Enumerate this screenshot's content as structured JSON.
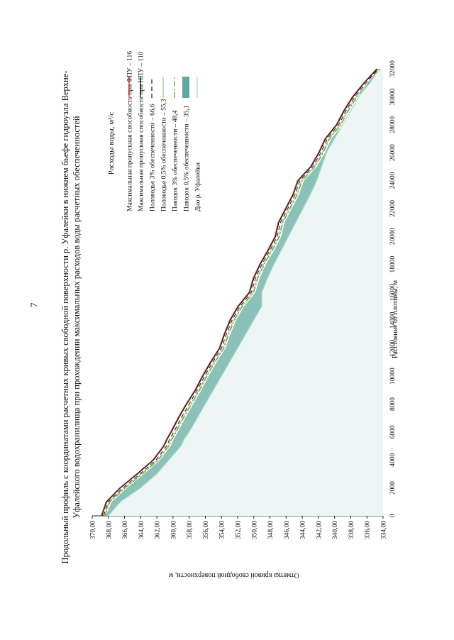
{
  "page": {
    "number": "7"
  },
  "chart_data": {
    "type": "area",
    "title_line1": "Продольный профиль с координатами расчетных кривых свободной поверхности р. Уфалейки в нижнем бьефе гидроузла Верхне-",
    "title_line2": "Уфалейского водохранилища при прохождении максимальных расходов воды расчетных обеспеченностей",
    "xlabel": "Расстояние от плотины, м",
    "ylabel": "Отметка кривой свободной поверхности, м",
    "xlim": [
      0,
      32000
    ],
    "ylim": [
      334,
      370
    ],
    "xticks": [
      "0",
      "2000",
      "4000",
      "6000",
      "8000",
      "10000",
      "12000",
      "14000",
      "16000",
      "18000",
      "20000",
      "22000",
      "24000",
      "26000",
      "28000",
      "30000",
      "32000"
    ],
    "yticks": [
      "334,00",
      "336,00",
      "338,00",
      "340,00",
      "342,00",
      "344,00",
      "346,00",
      "348,00",
      "350,00",
      "352,00",
      "354,00",
      "356,00",
      "358,00",
      "360,00",
      "362,00",
      "364,00",
      "366,00",
      "368,00",
      "370,00"
    ],
    "legend": {
      "title": "Расходы воды, м³/с",
      "position": "top-right"
    },
    "x": [
      0,
      1000,
      2000,
      3000,
      4000,
      5000,
      5500,
      6000,
      7000,
      8000,
      9000,
      10000,
      11000,
      12000,
      13000,
      14000,
      15000,
      16000,
      17000,
      18000,
      19000,
      20000,
      21000,
      22000,
      23000,
      24000,
      25000,
      26000,
      27000,
      28000,
      29000,
      30000,
      31000,
      32000
    ],
    "series": [
      {
        "name": "Максимальная пропускная способность при ФПУ – 116",
        "color": "#cc2b2b",
        "style": "solid",
        "values": [
          368.9,
          368.3,
          366.6,
          364.5,
          362.5,
          361.2,
          360.8,
          360.3,
          359.4,
          358.4,
          357.3,
          356.4,
          355.4,
          354.3,
          353.7,
          353.0,
          352.0,
          350.6,
          350.1,
          349.3,
          348.3,
          347.4,
          347.0,
          346.1,
          345.2,
          344.6,
          343.0,
          342.0,
          341.2,
          339.8,
          338.9,
          337.8,
          336.4,
          334.8
        ]
      },
      {
        "name": "Максимальная пропускная способность при НПУ – 110",
        "color": "#111111",
        "style": "solid",
        "values": [
          368.8,
          368.2,
          366.5,
          364.4,
          362.4,
          361.1,
          360.7,
          360.2,
          359.3,
          358.3,
          357.2,
          356.3,
          355.3,
          354.2,
          353.6,
          352.9,
          351.9,
          350.5,
          350.0,
          349.2,
          348.2,
          347.3,
          346.9,
          346.0,
          345.1,
          344.5,
          342.9,
          341.9,
          341.1,
          339.7,
          338.8,
          337.7,
          336.3,
          334.7
        ]
      },
      {
        "name": "Половодье 3% обеспеченности – 66,6",
        "color": "#222222",
        "style": "dashed",
        "values": [
          368.6,
          368.0,
          366.2,
          364.1,
          362.1,
          360.8,
          360.4,
          359.9,
          359.0,
          358.0,
          357.0,
          356.1,
          355.1,
          354.0,
          353.4,
          352.7,
          351.7,
          350.3,
          349.8,
          349.0,
          348.0,
          347.1,
          346.7,
          345.8,
          344.9,
          344.3,
          342.7,
          341.7,
          340.9,
          339.5,
          338.6,
          337.5,
          336.1,
          334.6
        ]
      },
      {
        "name": "Половодье 0,5% обеспеченности – 55,3",
        "color": "#a8c97f",
        "style": "solid",
        "values": [
          368.5,
          367.9,
          366.0,
          363.9,
          361.9,
          360.6,
          360.2,
          359.7,
          358.8,
          357.8,
          356.8,
          355.9,
          354.9,
          353.8,
          353.2,
          352.5,
          351.5,
          350.1,
          349.6,
          348.8,
          347.8,
          346.9,
          346.5,
          345.6,
          344.7,
          344.1,
          342.5,
          341.5,
          340.7,
          339.3,
          338.4,
          337.3,
          335.9,
          334.5
        ]
      },
      {
        "name": "Паводок 3% обеспеченности – 48,4",
        "color": "#5aa83a",
        "style": "dashdot",
        "values": [
          368.4,
          367.8,
          365.9,
          363.8,
          361.8,
          360.5,
          360.1,
          359.6,
          358.7,
          357.7,
          356.7,
          355.8,
          354.8,
          353.7,
          353.1,
          352.4,
          351.4,
          350.0,
          349.5,
          348.7,
          347.7,
          346.8,
          346.4,
          345.5,
          344.6,
          344.0,
          342.4,
          341.4,
          340.6,
          339.2,
          338.3,
          337.2,
          335.8,
          334.5
        ]
      },
      {
        "name": "Паводок 0,5% обеспеченности – 35,1",
        "color": "#5fa7a3",
        "style": "band",
        "values": [
          368.3,
          367.6,
          365.7,
          363.6,
          361.6,
          360.3,
          359.9,
          359.4,
          358.5,
          357.5,
          356.5,
          355.6,
          354.6,
          353.5,
          352.9,
          352.2,
          351.2,
          349.8,
          349.3,
          348.5,
          347.5,
          346.6,
          346.2,
          345.3,
          344.4,
          343.8,
          342.2,
          341.2,
          340.4,
          339.0,
          338.1,
          337.0,
          335.6,
          334.4
        ]
      },
      {
        "name": "Дно р. Уфалейки",
        "color": "#b9dccb",
        "style": "solid",
        "values": [
          368.0,
          366.5,
          364.0,
          362.0,
          360.5,
          359.0,
          358.6,
          358.0,
          357.0,
          356.0,
          355.0,
          354.0,
          353.0,
          352.0,
          351.0,
          350.0,
          349.0,
          349.0,
          348.3,
          347.5,
          346.6,
          345.7,
          344.8,
          343.9,
          343.0,
          342.2,
          341.6,
          341.0,
          340.0,
          339.0,
          338.0,
          337.0,
          335.9,
          334.3
        ]
      }
    ]
  }
}
